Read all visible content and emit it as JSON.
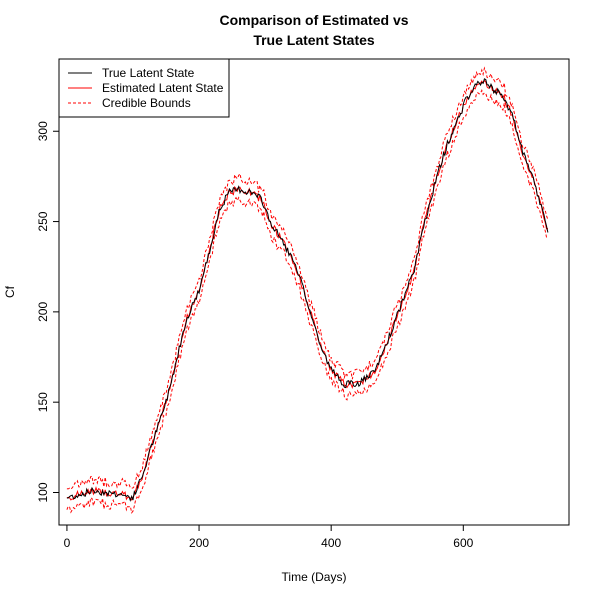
{
  "chart_data": {
    "type": "line",
    "title_lines": [
      "Comparison of Estimated vs",
      "True Latent States"
    ],
    "xlabel": "Time (Days)",
    "ylabel": "Cf",
    "xlim": [
      -12,
      760
    ],
    "ylim": [
      82,
      340
    ],
    "x_ticks": [
      0,
      200,
      400,
      600
    ],
    "y_ticks": [
      100,
      150,
      200,
      250,
      300
    ],
    "grid": false,
    "legend_position": "top-left",
    "legend": [
      {
        "label": "True Latent State",
        "color": "#000000",
        "style": "solid"
      },
      {
        "label": "Estimated Latent State",
        "color": "#ff0000",
        "style": "solid"
      },
      {
        "label": "Credible Bounds",
        "color": "#ff0000",
        "style": "dashed"
      }
    ],
    "true_state_keypoints": [
      [
        0,
        97
      ],
      [
        20,
        99
      ],
      [
        40,
        101
      ],
      [
        60,
        100
      ],
      [
        80,
        99
      ],
      [
        100,
        97
      ],
      [
        115,
        110
      ],
      [
        130,
        128
      ],
      [
        150,
        150
      ],
      [
        165,
        172
      ],
      [
        180,
        195
      ],
      [
        200,
        212
      ],
      [
        215,
        232
      ],
      [
        230,
        256
      ],
      [
        245,
        266
      ],
      [
        260,
        268
      ],
      [
        280,
        266
      ],
      [
        295,
        262
      ],
      [
        310,
        248
      ],
      [
        325,
        240
      ],
      [
        340,
        230
      ],
      [
        355,
        216
      ],
      [
        370,
        198
      ],
      [
        385,
        180
      ],
      [
        400,
        168
      ],
      [
        420,
        160
      ],
      [
        440,
        160
      ],
      [
        455,
        164
      ],
      [
        465,
        166
      ],
      [
        475,
        175
      ],
      [
        490,
        188
      ],
      [
        510,
        208
      ],
      [
        525,
        222
      ],
      [
        540,
        248
      ],
      [
        560,
        275
      ],
      [
        575,
        292
      ],
      [
        590,
        305
      ],
      [
        605,
        318
      ],
      [
        620,
        326
      ],
      [
        630,
        328
      ],
      [
        645,
        323
      ],
      [
        660,
        320
      ],
      [
        675,
        308
      ],
      [
        690,
        288
      ],
      [
        705,
        274
      ],
      [
        715,
        262
      ],
      [
        728,
        245
      ]
    ],
    "band_half_width": 6
  }
}
